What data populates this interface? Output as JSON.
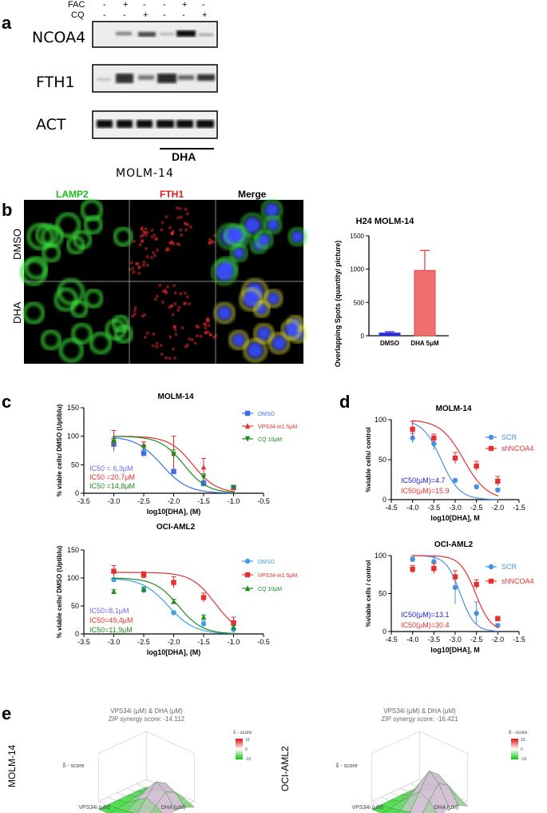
{
  "panels": {
    "a": "a",
    "b": "b",
    "c": "c",
    "d": "d",
    "e": "e"
  },
  "panel_a": {
    "treatments": [
      {
        "label": "FAC",
        "signs": [
          "-",
          "+",
          "-",
          "-",
          "+",
          "-"
        ]
      },
      {
        "label": "CQ",
        "signs": [
          "-",
          "-",
          "+",
          "-",
          "-",
          "+"
        ]
      }
    ],
    "blots": [
      "NCOA4",
      "FTH1",
      "ACT"
    ],
    "group_label": "DHA",
    "cell_line": "MOLM-14"
  },
  "panel_b": {
    "channels": [
      {
        "label": "LAMP2",
        "color": "#16c016"
      },
      {
        "label": "FTH1",
        "color": "#e21a1a"
      },
      {
        "label": "Merge",
        "color": "#000000"
      }
    ],
    "rows": [
      "DMSO",
      "DHA"
    ],
    "bar_chart_title": "H24 MOLM-14",
    "chart_data": {
      "type": "bar",
      "title": "H24 MOLM-14",
      "categories": [
        "DMSO",
        "DHA 5μM"
      ],
      "values": [
        40,
        980
      ],
      "errors": [
        20,
        300
      ],
      "ylabel": "Overlapping Spots (quantity/ picture)",
      "ylim": [
        0,
        1500
      ],
      "yticks": [
        0,
        500,
        1000,
        1500
      ],
      "colors": [
        "#2a2ad6",
        "#e84040"
      ]
    }
  },
  "charts": {
    "c1": {
      "type": "line",
      "title": "MOLM-14",
      "xlabel": "log10[DHA], (M)",
      "ylabel": "% viable cells/ DMSO (Uptiblu)",
      "xlim": [
        -3.5,
        -0.5
      ],
      "ylim": [
        0,
        150
      ],
      "xticks": [
        -3.5,
        -3.0,
        -2.5,
        -2.0,
        -1.5,
        -1.0,
        -0.5
      ],
      "xticklabels": [
        "-3.5",
        "-3.0",
        "-2.5",
        "-2.0",
        "-1.5",
        "-1.0",
        "-0.5"
      ],
      "yticks": [
        0,
        50,
        100,
        150
      ],
      "series": [
        {
          "name": "DMSO",
          "color": "#3b6fe8",
          "marker": "square",
          "x": [
            -3,
            -2.5,
            -2,
            -1.5,
            -1
          ],
          "y": [
            86,
            70,
            38,
            17,
            10
          ],
          "err": [
            5,
            6,
            4,
            5,
            3
          ],
          "ic50": -2.2,
          "hill": 1.0,
          "top": 100
        },
        {
          "name": "VPS34-in1 5μM",
          "color": "#e53030",
          "marker": "triangle",
          "x": [
            -3,
            -2.5,
            -2,
            -1.5,
            -1
          ],
          "y": [
            92,
            85,
            70,
            46,
            10
          ],
          "err": [
            18,
            5,
            30,
            15,
            3
          ],
          "ic50": -1.68,
          "hill": 1.1,
          "top": 100
        },
        {
          "name": "CQ 10μM",
          "color": "#1f8a1f",
          "marker": "triangle-down",
          "x": [
            -3,
            -2.5,
            -2,
            -1.5,
            -1
          ],
          "y": [
            90,
            80,
            68,
            28,
            10
          ],
          "err": [
            6,
            4,
            8,
            6,
            3
          ],
          "ic50": -1.83,
          "hill": 1.1,
          "top": 100
        }
      ],
      "annotations": [
        {
          "text": "IC50 = 6,3μM",
          "color": "#6a6af0"
        },
        {
          "text": "IC50 =20,7μM",
          "color": "#e53030"
        },
        {
          "text": "IC50 =14,8μM",
          "color": "#1f8a1f"
        }
      ]
    },
    "c2": {
      "type": "line",
      "title": "OCI-AML2",
      "xlabel": "log10[DHA], (M)",
      "ylabel": "% viable cells/ DMSO (Uptiblu)",
      "xlim": [
        -3.5,
        -0.5
      ],
      "ylim": [
        0,
        150
      ],
      "xticks": [
        -3.5,
        -3.0,
        -2.5,
        -2.0,
        -1.5,
        -1.0,
        -0.5
      ],
      "xticklabels": [
        "-3.5",
        "-3.0",
        "-2.5",
        "-2.0",
        "-1.5",
        "-1.0",
        "-0.5"
      ],
      "yticks": [
        0,
        50,
        100,
        150
      ],
      "series": [
        {
          "name": "DMSO",
          "color": "#3ba0e8",
          "marker": "circle",
          "x": [
            -3,
            -2.5,
            -2,
            -1.5,
            -1
          ],
          "y": [
            97,
            78,
            38,
            18,
            8
          ],
          "err": [
            3,
            4,
            3,
            5,
            3
          ],
          "ic50": -2.09,
          "hill": 1.0,
          "top": 100
        },
        {
          "name": "VPS34-in1 5μM",
          "color": "#e53030",
          "marker": "square",
          "x": [
            -3,
            -2.5,
            -2,
            -1.5,
            -1
          ],
          "y": [
            112,
            105,
            92,
            65,
            20
          ],
          "err": [
            10,
            6,
            10,
            8,
            10
          ],
          "ic50": -1.31,
          "hill": 1.1,
          "top": 110
        },
        {
          "name": "CQ 10μM",
          "color": "#1f8a1f",
          "marker": "triangle",
          "x": [
            -3,
            -2.5,
            -2,
            -1.5,
            -1
          ],
          "y": [
            76,
            80,
            58,
            30,
            12
          ],
          "err": [
            3,
            4,
            4,
            4,
            3
          ],
          "ic50": -1.92,
          "hill": 1.1,
          "top": 100
        }
      ],
      "annotations": [
        {
          "text": "IC50=8,1μM",
          "color": "#6a6af0"
        },
        {
          "text": "IC50=49,4μM",
          "color": "#e53030"
        },
        {
          "text": "IC50=11,9μM",
          "color": "#1f8a1f"
        }
      ]
    },
    "d1": {
      "type": "line",
      "title": "MOLM-14",
      "xlabel": "log10[DHA], M",
      "ylabel": "%viable cells/ control",
      "xlim": [
        -4.5,
        -1.5
      ],
      "ylim": [
        0,
        100
      ],
      "xticks": [
        -4.5,
        -4.0,
        -3.5,
        -3.0,
        -2.5,
        -2.0,
        -1.5
      ],
      "xticklabels": [
        "-4.5",
        "-4.0",
        "-3.5",
        "-3.0",
        "-2.5",
        "-2.0",
        "-1.5"
      ],
      "yticks": [
        0,
        50,
        100
      ],
      "series": [
        {
          "name": "SCR",
          "color": "#4a90e2",
          "marker": "circle",
          "x": [
            -4,
            -3.5,
            -3,
            -2.5,
            -2
          ],
          "y": [
            77,
            70,
            24,
            16,
            12
          ],
          "err": [
            6,
            8,
            2,
            2,
            2
          ],
          "ic50": -3.33,
          "hill": 1.0,
          "top": 100
        },
        {
          "name": "shNCOA4",
          "color": "#e53030",
          "marker": "square",
          "x": [
            -4,
            -3.5,
            -3,
            -2.5,
            -2
          ],
          "y": [
            88,
            77,
            52,
            42,
            23
          ],
          "err": [
            10,
            5,
            7,
            6,
            6
          ],
          "ic50": -2.8,
          "hill": 0.8,
          "top": 100
        }
      ],
      "annotations": [
        {
          "text": "IC50(μM)=4.7",
          "color": "#2020d0"
        },
        {
          "text": "IC50(μM)=15.9",
          "color": "#e53030"
        }
      ]
    },
    "d2": {
      "type": "line",
      "title": "OCI-AML2",
      "xlabel": "log10[DHA], M",
      "ylabel": "%viable cells / control",
      "xlim": [
        -4.5,
        -1.5
      ],
      "ylim": [
        0,
        100
      ],
      "xticks": [
        -4.5,
        -4.0,
        -3.5,
        -3.0,
        -2.5,
        -2.0,
        -1.5
      ],
      "xticklabels": [
        "-4.5",
        "-4.0",
        "-3.5",
        "-3.0",
        "-2.5",
        "-2.0",
        "-1.5"
      ],
      "yticks": [
        0,
        50,
        100
      ],
      "series": [
        {
          "name": "SCR",
          "color": "#4a90e2",
          "marker": "circle",
          "x": [
            -4,
            -3.5,
            -3,
            -2.5,
            -2
          ],
          "y": [
            95,
            92,
            58,
            24,
            8
          ],
          "err": [
            3,
            7,
            22,
            15,
            2
          ],
          "ic50": -2.88,
          "hill": 1.3,
          "top": 100
        },
        {
          "name": "shNCOA4",
          "color": "#e53030",
          "marker": "square",
          "x": [
            -4,
            -3.5,
            -3,
            -2.5,
            -2
          ],
          "y": [
            82,
            83,
            72,
            62,
            17
          ],
          "err": [
            5,
            7,
            8,
            6,
            3
          ],
          "ic50": -2.52,
          "hill": 1.2,
          "top": 100
        }
      ],
      "annotations": [
        {
          "text": "IC50(μM)=13.1",
          "color": "#2020d0"
        },
        {
          "text": "IC50(μM)=30.4",
          "color": "#e53030"
        }
      ]
    }
  },
  "panel_e": {
    "plots": [
      {
        "row_label": "MOLM-14",
        "title": "VPS34i (μM) & DHA (μM)",
        "subtitle": "ZIP synergy score: -14.112",
        "zlabel": "δ - score",
        "xlabel": "VPS34i (μM)",
        "ylabel": "DHA (μM)",
        "colorbar_title": "δ - score",
        "colorbar_ticks": [
          "10",
          "0",
          "-10"
        ]
      },
      {
        "row_label": "OCI-AML2",
        "title": "VPS34i (μM) & DHA (μM)",
        "subtitle": "ZIP synergy score: -16.421",
        "zlabel": "δ - score",
        "xlabel": "VPS34i (μM)",
        "ylabel": "DHA (μM)",
        "colorbar_title": "δ - score",
        "colorbar_ticks": [
          "10",
          "0",
          "-10"
        ]
      }
    ]
  }
}
